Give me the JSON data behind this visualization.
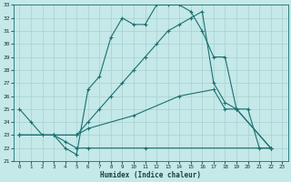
{
  "xlabel": "Humidex (Indice chaleur)",
  "bg_color": "#c5e8e8",
  "grid_color": "#a8d0d0",
  "line_color": "#1a7070",
  "xlim": [
    -0.5,
    23.5
  ],
  "ylim": [
    21,
    33
  ],
  "xticks": [
    0,
    1,
    2,
    3,
    4,
    5,
    6,
    7,
    8,
    9,
    10,
    11,
    12,
    13,
    14,
    15,
    16,
    17,
    18,
    19,
    20,
    21,
    22,
    23
  ],
  "yticks": [
    21,
    22,
    23,
    24,
    25,
    26,
    27,
    28,
    29,
    30,
    31,
    32,
    33
  ],
  "line1_x": [
    0,
    1,
    2,
    3,
    4,
    5,
    6,
    7,
    8,
    9,
    10,
    11,
    12,
    13,
    14,
    15,
    16,
    17,
    18,
    19,
    20,
    21,
    22
  ],
  "line1_y": [
    25,
    24,
    23,
    23,
    22,
    21.5,
    26.5,
    27.5,
    30.5,
    32,
    31.5,
    31.5,
    33,
    33,
    33,
    32.5,
    31,
    29,
    29,
    25,
    25,
    22,
    22
  ],
  "line2_x": [
    0,
    3,
    5,
    6,
    7,
    8,
    9,
    10,
    11,
    12,
    13,
    14,
    15,
    16,
    17,
    18,
    19,
    22
  ],
  "line2_y": [
    23,
    23,
    23,
    24,
    25,
    26,
    27,
    28,
    29,
    30,
    31,
    31.5,
    32,
    32.5,
    27,
    25.5,
    25,
    22
  ],
  "line3_x": [
    0,
    3,
    4,
    5,
    6,
    11,
    22
  ],
  "line3_y": [
    23,
    23,
    22.5,
    22,
    22,
    22,
    22
  ],
  "line4_x": [
    0,
    5,
    6,
    10,
    14,
    17,
    18,
    19,
    22
  ],
  "line4_y": [
    23,
    23,
    23.5,
    24.5,
    26,
    26.5,
    25,
    25,
    22
  ]
}
